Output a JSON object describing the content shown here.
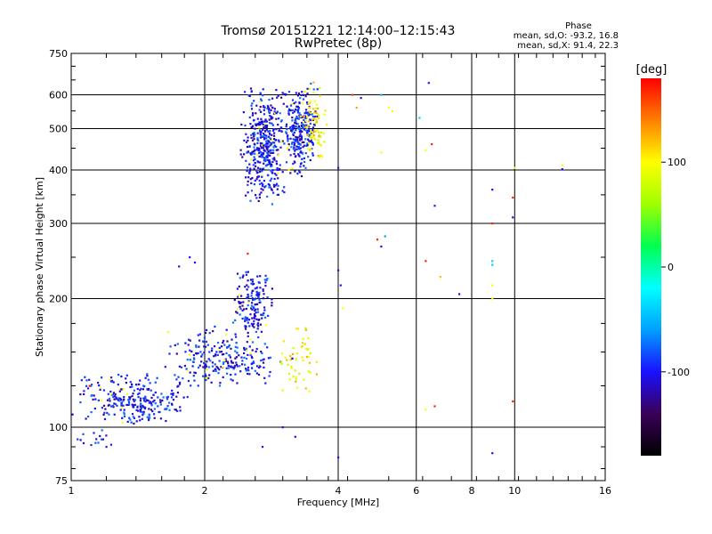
{
  "chart_data": {
    "type": "scatter",
    "title": "Tromsø 20151221 12:14:00–12:15:43",
    "subtitle": "RwPretec (8p)",
    "xlabel": "Frequency [MHz]",
    "ylabel": "Stationary phase Virtual Height [km]",
    "x_scale": "log",
    "y_scale": "log",
    "xlim": [
      1,
      16
    ],
    "ylim": [
      75,
      750
    ],
    "x_ticks": [
      1,
      2,
      4,
      6,
      8,
      10,
      16
    ],
    "y_ticks": [
      75,
      100,
      200,
      300,
      400,
      500,
      600,
      750
    ],
    "grid": true,
    "colorbar": {
      "label": "[deg]",
      "range": [
        -180,
        180
      ],
      "ticks": [
        100,
        0,
        -100
      ],
      "colormap": [
        "#000000",
        "#3a0058",
        "#1a10ff",
        "#00a0ff",
        "#00ffff",
        "#00ff50",
        "#a0ff00",
        "#ffff00",
        "#ff8000",
        "#ff0000"
      ]
    },
    "phase_stats": {
      "heading": "Phase",
      "line1": "mean, sd,O: -93.2, 16.8",
      "line2": "mean, sd,X:  91.4, 22.3"
    },
    "clusters": [
      {
        "x_range": [
          1.0,
          1.9
        ],
        "y_range": [
          100,
          135
        ],
        "phase": -100,
        "count": 260
      },
      {
        "x_range": [
          1.6,
          2.9
        ],
        "y_range": [
          120,
          175
        ],
        "phase": -100,
        "count": 240
      },
      {
        "x_range": [
          2.3,
          2.9
        ],
        "y_range": [
          160,
          235
        ],
        "phase": -100,
        "count": 160
      },
      {
        "x_range": [
          2.9,
          3.6
        ],
        "y_range": [
          115,
          180
        ],
        "phase": 100,
        "count": 55
      },
      {
        "x_range": [
          2.4,
          3.1
        ],
        "y_range": [
          330,
          650
        ],
        "phase": -100,
        "count": 420
      },
      {
        "x_range": [
          3.0,
          3.6
        ],
        "y_range": [
          380,
          640
        ],
        "phase": -100,
        "count": 260
      },
      {
        "x_range": [
          3.3,
          3.8
        ],
        "y_range": [
          420,
          650
        ],
        "phase": 100,
        "count": 80
      },
      {
        "x_range": [
          1.0,
          1.3
        ],
        "y_range": [
          88,
          100
        ],
        "phase": -100,
        "count": 15
      }
    ],
    "points": [
      {
        "x": 1.75,
        "y": 238,
        "phase": -100
      },
      {
        "x": 1.85,
        "y": 250,
        "phase": -100
      },
      {
        "x": 1.9,
        "y": 243,
        "phase": -100
      },
      {
        "x": 4.0,
        "y": 233,
        "phase": -100
      },
      {
        "x": 4.05,
        "y": 215,
        "phase": -100
      },
      {
        "x": 4.1,
        "y": 190,
        "phase": 100
      },
      {
        "x": 4.0,
        "y": 405,
        "phase": -100
      },
      {
        "x": 4.3,
        "y": 600,
        "phase": 160
      },
      {
        "x": 4.4,
        "y": 560,
        "phase": 130
      },
      {
        "x": 4.5,
        "y": 590,
        "phase": -100
      },
      {
        "x": 5.0,
        "y": 600,
        "phase": -50
      },
      {
        "x": 5.2,
        "y": 560,
        "phase": 100
      },
      {
        "x": 5.0,
        "y": 440,
        "phase": 100
      },
      {
        "x": 5.3,
        "y": 550,
        "phase": 90
      },
      {
        "x": 4.9,
        "y": 275,
        "phase": 170
      },
      {
        "x": 5.0,
        "y": 265,
        "phase": -100
      },
      {
        "x": 5.1,
        "y": 280,
        "phase": -60
      },
      {
        "x": 6.4,
        "y": 640,
        "phase": -100
      },
      {
        "x": 6.1,
        "y": 530,
        "phase": -40
      },
      {
        "x": 6.5,
        "y": 460,
        "phase": 170
      },
      {
        "x": 6.3,
        "y": 445,
        "phase": 100
      },
      {
        "x": 6.6,
        "y": 330,
        "phase": -100
      },
      {
        "x": 6.3,
        "y": 245,
        "phase": 170
      },
      {
        "x": 6.8,
        "y": 225,
        "phase": 120
      },
      {
        "x": 7.5,
        "y": 205,
        "phase": -100
      },
      {
        "x": 6.6,
        "y": 112,
        "phase": 170
      },
      {
        "x": 6.3,
        "y": 110,
        "phase": 100
      },
      {
        "x": 8.9,
        "y": 360,
        "phase": -100
      },
      {
        "x": 8.9,
        "y": 300,
        "phase": 170
      },
      {
        "x": 8.9,
        "y": 245,
        "phase": -40
      },
      {
        "x": 8.9,
        "y": 240,
        "phase": -40
      },
      {
        "x": 8.9,
        "y": 215,
        "phase": 100
      },
      {
        "x": 8.9,
        "y": 200,
        "phase": 100
      },
      {
        "x": 8.9,
        "y": 87,
        "phase": -100
      },
      {
        "x": 9.9,
        "y": 345,
        "phase": 170
      },
      {
        "x": 9.9,
        "y": 310,
        "phase": -100
      },
      {
        "x": 10.0,
        "y": 405,
        "phase": 100
      },
      {
        "x": 9.9,
        "y": 115,
        "phase": 170
      },
      {
        "x": 12.8,
        "y": 402,
        "phase": -100
      },
      {
        "x": 12.8,
        "y": 410,
        "phase": 100
      },
      {
        "x": 2.7,
        "y": 90,
        "phase": -100
      },
      {
        "x": 3.2,
        "y": 95,
        "phase": -100
      },
      {
        "x": 4.0,
        "y": 85,
        "phase": -100
      },
      {
        "x": 3.0,
        "y": 100,
        "phase": -100
      },
      {
        "x": 1.1,
        "y": 125,
        "phase": 170
      },
      {
        "x": 1.2,
        "y": 90,
        "phase": -100
      },
      {
        "x": 2.5,
        "y": 255,
        "phase": 170
      }
    ]
  }
}
